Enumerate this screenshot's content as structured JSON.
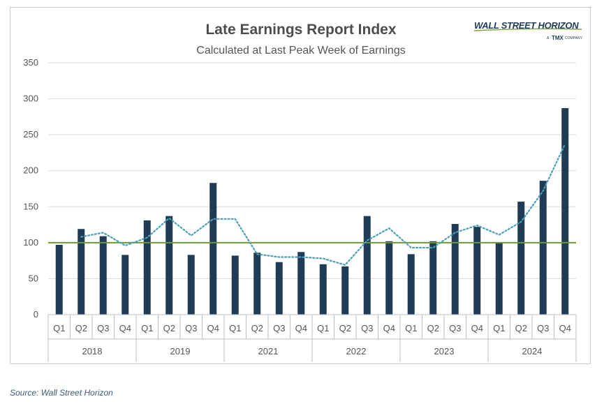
{
  "chart_data": {
    "type": "bar",
    "title": "Late Earnings Report Index",
    "subtitle": "Calculated at Last Peak Week of Earnings",
    "xlabel": "",
    "ylabel": "",
    "ylim": [
      0,
      350
    ],
    "yticks": [
      0,
      50,
      100,
      150,
      200,
      250,
      300,
      350
    ],
    "grid": true,
    "legend": "none",
    "groups": [
      {
        "label": "2018",
        "quarters": [
          "Q1",
          "Q2",
          "Q3",
          "Q4"
        ]
      },
      {
        "label": "2019",
        "quarters": [
          "Q1",
          "Q2",
          "Q3",
          "Q4"
        ]
      },
      {
        "label": "2021",
        "quarters": [
          "Q1",
          "Q2",
          "Q3",
          "Q4"
        ]
      },
      {
        "label": "2022",
        "quarters": [
          "Q1",
          "Q2",
          "Q3",
          "Q4"
        ]
      },
      {
        "label": "2023",
        "quarters": [
          "Q1",
          "Q2",
          "Q3",
          "Q4"
        ]
      },
      {
        "label": "2024",
        "quarters": [
          "Q1",
          "Q2",
          "Q3",
          "Q4"
        ]
      }
    ],
    "values": [
      97,
      119,
      109,
      83,
      131,
      137,
      83,
      183,
      82,
      86,
      73,
      87,
      70,
      67,
      137,
      102,
      84,
      102,
      126,
      122,
      100,
      157,
      186,
      287
    ],
    "moving_average": [
      null,
      108,
      114,
      96,
      107,
      134,
      110,
      133,
      133,
      84,
      80,
      80,
      78,
      69,
      103,
      120,
      93,
      93,
      114,
      124,
      111,
      129,
      172,
      237
    ],
    "baseline": 100,
    "colors": {
      "bar": "#1f3b55",
      "moving_average": "#4a9fb5",
      "baseline": "#6b9a3a",
      "grid": "#d9d9d9"
    }
  },
  "logo": {
    "name": "WALL STREET HORIZON",
    "tagline_prefix": "A",
    "tagline_brand": "TMX",
    "tagline_suffix": "COMPANY"
  },
  "source": "Source: Wall Street Horizon"
}
